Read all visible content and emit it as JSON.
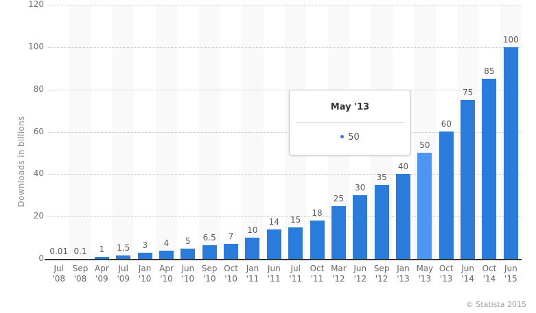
{
  "chart_data": {
    "type": "bar",
    "title": "",
    "xlabel": "",
    "ylabel": "Downloads in billions",
    "ylim": [
      0,
      120
    ],
    "ytick_interval": 20,
    "grid": "horizontal-dotted",
    "legend": "none",
    "categories": [
      "Jul '08",
      "Sep '08",
      "Apr '09",
      "Jul '09",
      "Jan '10",
      "Apr '10",
      "Jun '10",
      "Sep '10",
      "Oct '10",
      "Jan '11",
      "Jun '11",
      "Jul '11",
      "Oct '11",
      "Mar '12",
      "Jun '12",
      "Sep '12",
      "Jan '13",
      "May '13",
      "Oct '13",
      "Jun '14",
      "Oct '14",
      "Jun '15"
    ],
    "values": [
      0.01,
      0.1,
      1,
      1.5,
      3,
      4,
      5,
      6.5,
      7,
      10,
      14,
      15,
      18,
      25,
      30,
      35,
      40,
      50,
      60,
      75,
      85,
      100
    ],
    "value_labels": [
      "0.01",
      "0.1",
      "1",
      "1.5",
      "3",
      "4",
      "5",
      "6.5",
      "7",
      "10",
      "14",
      "15",
      "18",
      "25",
      "30",
      "35",
      "40",
      "50",
      "60",
      "75",
      "85",
      "100"
    ],
    "highlighted_index": 17,
    "colors": {
      "bar": "#2b7bdb",
      "bar_highlight": "#4e96f2",
      "band": "#f9f9f9",
      "gridline": "#c9c9c9",
      "axis_line": "#333333"
    }
  },
  "tooltip": {
    "title": "May '13",
    "value": "50",
    "bullet_color": "#2b7bdb"
  },
  "watermark": "© Statista 2015"
}
